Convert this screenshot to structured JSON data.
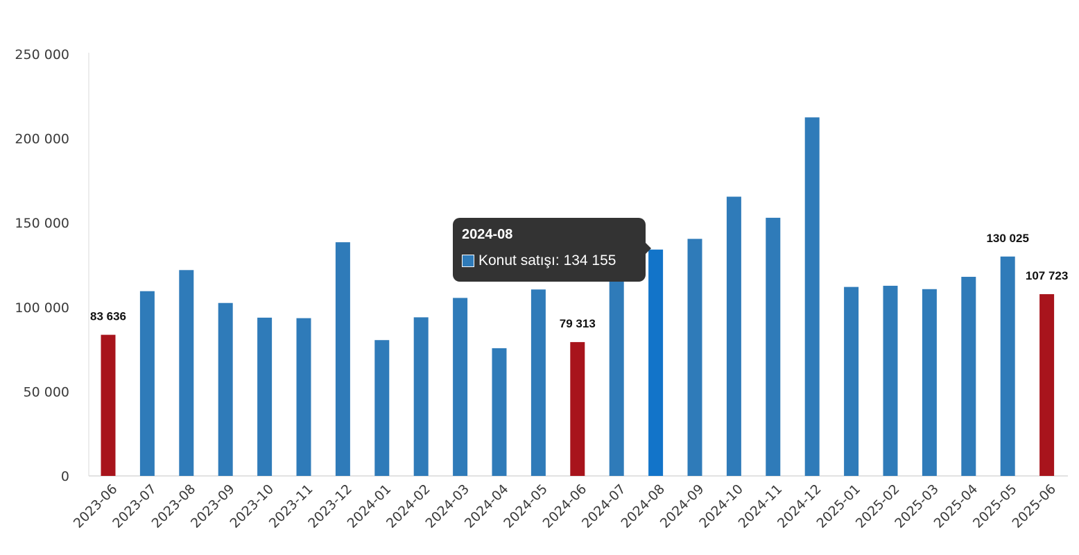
{
  "chart_data": {
    "type": "bar",
    "categories": [
      "2023-06",
      "2023-07",
      "2023-08",
      "2023-09",
      "2023-10",
      "2023-11",
      "2023-12",
      "2024-01",
      "2024-02",
      "2024-03",
      "2024-04",
      "2024-05",
      "2024-06",
      "2024-07",
      "2024-08",
      "2024-09",
      "2024-10",
      "2024-11",
      "2024-12",
      "2025-01",
      "2025-02",
      "2025-03",
      "2025-04",
      "2025-05",
      "2025-06"
    ],
    "series": [
      {
        "name": "Konut satışı",
        "values": [
          83636,
          109500,
          122000,
          102500,
          93800,
          93500,
          138500,
          80500,
          94000,
          105500,
          75700,
          110500,
          79313,
          124000,
          134155,
          140500,
          165500,
          153000,
          212500,
          112000,
          112700,
          110700,
          118000,
          130025,
          107723
        ]
      }
    ],
    "ylim": [
      0,
      250000
    ],
    "yticks": [
      0,
      50000,
      100000,
      150000,
      200000,
      250000
    ],
    "ytick_labels": [
      "0",
      "50 000",
      "100 000",
      "150 000",
      "200 000",
      "250 000"
    ],
    "bar_color": "#2f7bb9",
    "highlight_color": "#a8141c",
    "hover_color": "#1274c9",
    "highlighted_categories": [
      "2023-06",
      "2024-06",
      "2025-06"
    ],
    "hovered_category": "2024-08",
    "data_labels": [
      {
        "category": "2023-06",
        "text": "83 636"
      },
      {
        "category": "2024-06",
        "text": "79 313"
      },
      {
        "category": "2025-05",
        "text": "130 025"
      },
      {
        "category": "2025-06",
        "text": "107 723"
      }
    ],
    "grid": false,
    "legend": "none"
  },
  "tooltip": {
    "title": "2024-08",
    "series_label": "Konut satışı: 134 155",
    "swatch_color": "#2f7bb9"
  }
}
